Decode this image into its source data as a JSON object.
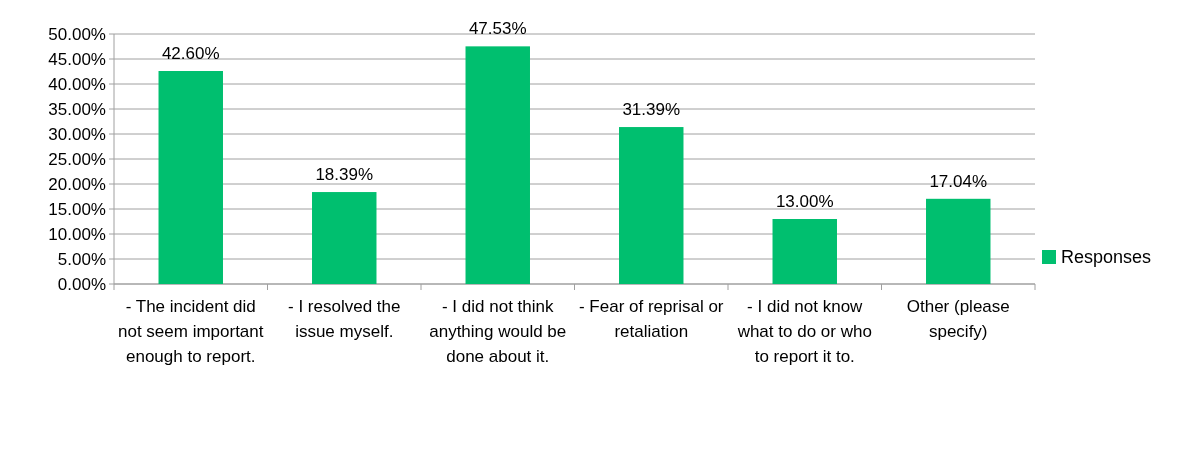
{
  "chart_data": {
    "type": "bar",
    "categories": [
      "- The incident did not seem important enough to report.",
      "- I resolved the issue myself.",
      "- I did not think anything would be done about it.",
      "- Fear of reprisal or retaliation",
      "- I did not know what to do or who to report it to.",
      "Other (please specify)"
    ],
    "series": [
      {
        "name": "Responses",
        "color": "#00bf6f",
        "values": [
          42.6,
          18.39,
          47.53,
          31.39,
          13.0,
          17.04
        ],
        "value_labels": [
          "42.60%",
          "18.39%",
          "47.53%",
          "31.39%",
          "13.00%",
          "17.04%"
        ]
      }
    ],
    "ylim": [
      0,
      50
    ],
    "yticks": [
      {
        "value": 0,
        "label": "0.00%"
      },
      {
        "value": 5,
        "label": "5.00%"
      },
      {
        "value": 10,
        "label": "10.00%"
      },
      {
        "value": 15,
        "label": "15.00%"
      },
      {
        "value": 20,
        "label": "20.00%"
      },
      {
        "value": 25,
        "label": "25.00%"
      },
      {
        "value": 30,
        "label": "30.00%"
      },
      {
        "value": 35,
        "label": "35.00%"
      },
      {
        "value": 40,
        "label": "40.00%"
      },
      {
        "value": 45,
        "label": "45.00%"
      },
      {
        "value": 50,
        "label": "50.00%"
      }
    ],
    "grid": "y",
    "legend": "right"
  }
}
